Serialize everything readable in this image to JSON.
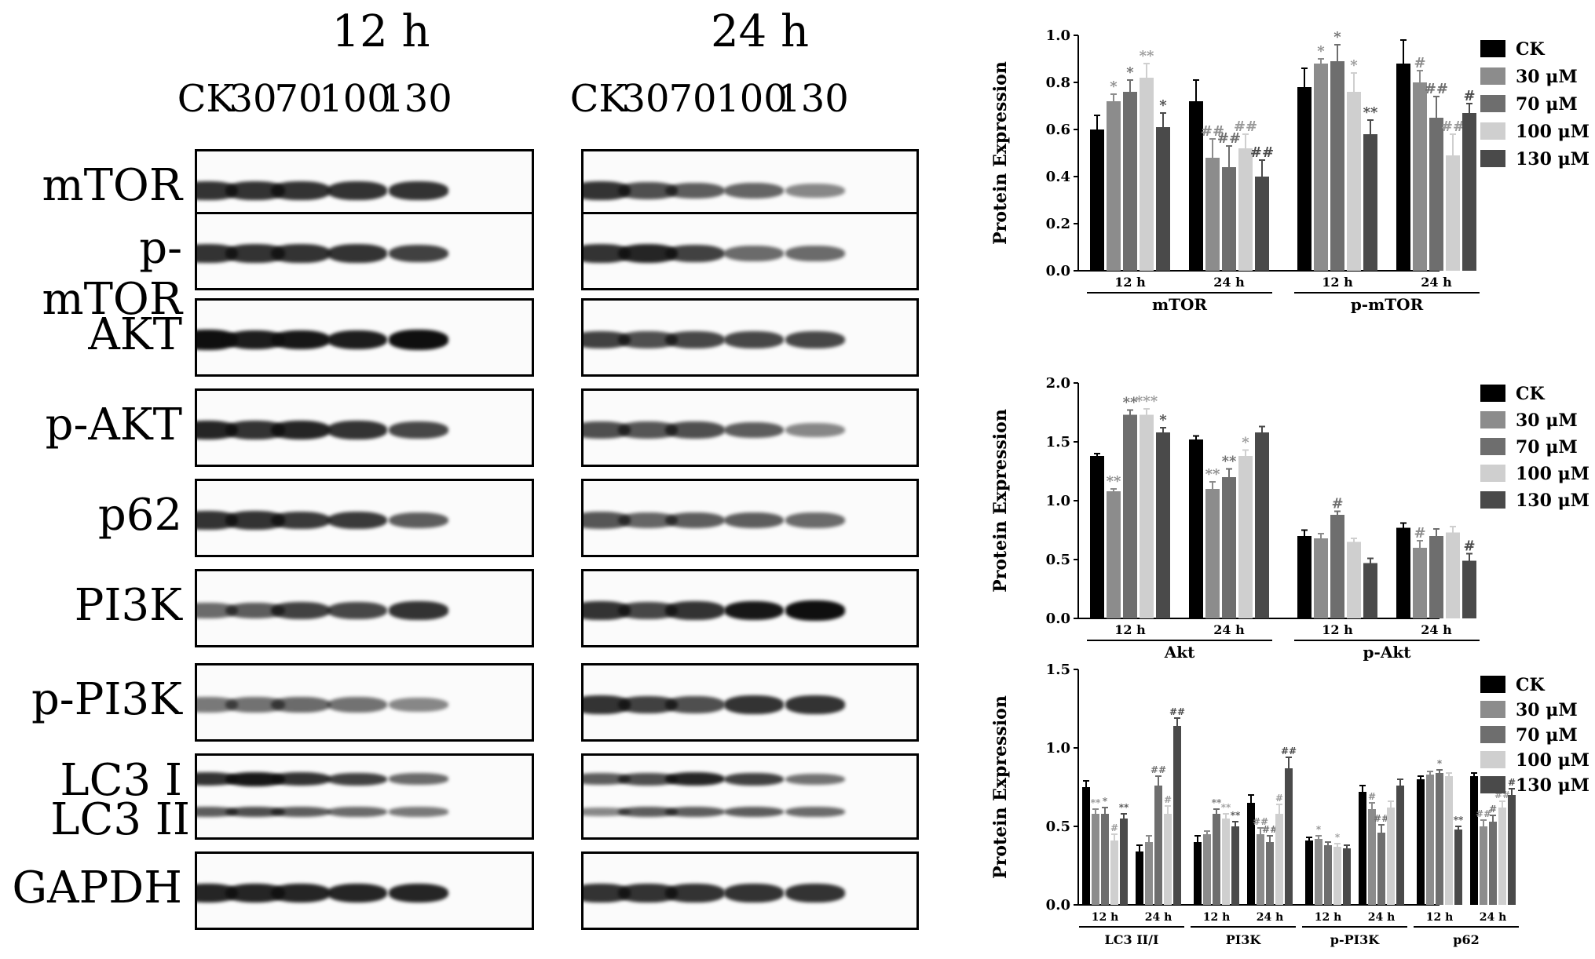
{
  "blots": {
    "time_labels": [
      "12 h",
      "24 h"
    ],
    "lane_labels": [
      "CK",
      "30",
      "70",
      "100",
      "130"
    ],
    "rows": [
      {
        "label": "mTOR",
        "b12": [
          1,
          1,
          1,
          1,
          1
        ],
        "b24": [
          1,
          0.8,
          0.7,
          0.65,
          0.4
        ]
      },
      {
        "label": "p-mTOR",
        "b12": [
          1,
          1,
          1,
          1,
          0.9
        ],
        "b24": [
          1,
          1.1,
          0.9,
          0.6,
          0.6
        ]
      },
      {
        "label": "AKT",
        "b12": [
          1.3,
          1.15,
          1.2,
          1.15,
          1.3
        ],
        "b24": [
          0.9,
          0.8,
          0.85,
          0.85,
          0.85
        ]
      },
      {
        "label": "p-AKT",
        "b12": [
          1.1,
          1,
          1.1,
          1,
          0.85
        ],
        "b24": [
          0.8,
          0.75,
          0.8,
          0.7,
          0.4
        ]
      },
      {
        "label": "p62",
        "b12": [
          1,
          1,
          0.95,
          0.95,
          0.7
        ],
        "b24": [
          0.75,
          0.65,
          0.7,
          0.7,
          0.6
        ]
      },
      {
        "label": "PI3K",
        "b12": [
          0.6,
          0.7,
          0.9,
          0.85,
          1.0
        ],
        "b24": [
          1,
          0.85,
          1,
          1.2,
          1.3
        ]
      },
      {
        "label": "p-PI3K",
        "b12": [
          0.5,
          0.55,
          0.6,
          0.55,
          0.4
        ],
        "b24": [
          1,
          0.9,
          0.8,
          1,
          1
        ]
      },
      {
        "label": "LC3 I",
        "label2": "LC3 II",
        "b12": [
          1,
          1.2,
          1,
          0.9,
          0.6
        ],
        "b12b": [
          0.7,
          0.8,
          0.7,
          0.6,
          0.5
        ],
        "b24": [
          0.7,
          0.8,
          1.1,
          0.9,
          0.55
        ],
        "b24b": [
          0.4,
          0.7,
          0.7,
          0.7,
          0.6
        ]
      },
      {
        "label": "GAPDH",
        "b12": [
          1.1,
          1.1,
          1.1,
          1.1,
          1.1
        ],
        "b24": [
          1,
          1,
          1,
          1,
          1
        ]
      }
    ]
  },
  "chart_data": [
    {
      "type": "bar",
      "ylabel": "Protein Expression",
      "ylim": [
        0,
        1.0
      ],
      "yticks": [
        "0.0",
        "0.2",
        "0.4",
        "0.6",
        "0.8",
        "1.0"
      ],
      "legend": [
        "CK",
        "30 μM",
        "70 μM",
        "100 μM",
        "130 μM"
      ],
      "groups": [
        {
          "label": "mTOR",
          "subgroups": [
            "12 h",
            "24 h"
          ]
        },
        {
          "label": "p-mTOR",
          "subgroups": [
            "12 h",
            "24 h"
          ]
        }
      ],
      "clusters": [
        {
          "values": [
            0.6,
            0.72,
            0.76,
            0.82,
            0.61
          ],
          "errors": [
            0.06,
            0.03,
            0.05,
            0.06,
            0.06
          ],
          "marks": [
            "",
            "*",
            "*",
            "**",
            "*"
          ]
        },
        {
          "values": [
            0.72,
            0.48,
            0.44,
            0.52,
            0.4
          ],
          "errors": [
            0.09,
            0.08,
            0.09,
            0.06,
            0.07
          ],
          "marks": [
            "",
            "##",
            "##",
            "##",
            "##"
          ]
        },
        {
          "values": [
            0.78,
            0.88,
            0.89,
            0.76,
            0.58
          ],
          "errors": [
            0.08,
            0.02,
            0.07,
            0.08,
            0.06
          ],
          "marks": [
            "",
            "*",
            "*",
            "*",
            "**"
          ]
        },
        {
          "values": [
            0.88,
            0.8,
            0.65,
            0.49,
            0.67
          ],
          "errors": [
            0.1,
            0.05,
            0.09,
            0.09,
            0.04
          ],
          "marks": [
            "",
            "#",
            "##",
            "##",
            "#"
          ]
        }
      ]
    },
    {
      "type": "bar",
      "ylabel": "Protein Expression",
      "ylim": [
        0,
        2.0
      ],
      "yticks": [
        "0.0",
        "0.5",
        "1.0",
        "1.5",
        "2.0"
      ],
      "legend": [
        "CK",
        "30 μM",
        "70 μM",
        "100 μM",
        "130 μM"
      ],
      "groups": [
        {
          "label": "Akt",
          "subgroups": [
            "12 h",
            "24 h"
          ]
        },
        {
          "label": "p-Akt",
          "subgroups": [
            "12 h",
            "24 h"
          ]
        }
      ],
      "clusters": [
        {
          "values": [
            1.38,
            1.08,
            1.73,
            1.73,
            1.58
          ],
          "errors": [
            0.02,
            0.02,
            0.04,
            0.05,
            0.04
          ],
          "marks": [
            "",
            "**",
            "**",
            "***",
            "*"
          ]
        },
        {
          "values": [
            1.52,
            1.1,
            1.2,
            1.38,
            1.58
          ],
          "errors": [
            0.03,
            0.06,
            0.07,
            0.05,
            0.05
          ],
          "marks": [
            "",
            "**",
            "**",
            "*",
            ""
          ]
        },
        {
          "values": [
            0.7,
            0.68,
            0.88,
            0.65,
            0.47
          ],
          "errors": [
            0.05,
            0.04,
            0.03,
            0.03,
            0.04
          ],
          "marks": [
            "",
            "",
            "#",
            "",
            ""
          ]
        },
        {
          "values": [
            0.77,
            0.6,
            0.7,
            0.73,
            0.49
          ],
          "errors": [
            0.04,
            0.06,
            0.06,
            0.05,
            0.06
          ],
          "marks": [
            "",
            "#",
            "",
            "",
            "#"
          ]
        }
      ]
    },
    {
      "type": "bar",
      "ylabel": "Protein Expression",
      "ylim": [
        0,
        1.5
      ],
      "yticks": [
        "0.0",
        "0.5",
        "1.0",
        "1.5"
      ],
      "legend": [
        "CK",
        "30 μM",
        "70 μM",
        "100 μM",
        "130 μM"
      ],
      "groups": [
        {
          "label": "LC3 II/I",
          "subgroups": [
            "12 h",
            "24 h"
          ]
        },
        {
          "label": "PI3K",
          "subgroups": [
            "12 h",
            "24 h"
          ]
        },
        {
          "label": "p-PI3K",
          "subgroups": [
            "12 h",
            "24 h"
          ]
        },
        {
          "label": "p62",
          "subgroups": [
            "12 h",
            "24 h"
          ]
        }
      ],
      "clusters": [
        {
          "values": [
            0.75,
            0.58,
            0.58,
            0.41,
            0.55
          ],
          "errors": [
            0.04,
            0.03,
            0.04,
            0.04,
            0.03
          ],
          "marks": [
            "",
            "**",
            "*",
            "#",
            "**"
          ]
        },
        {
          "values": [
            0.34,
            0.4,
            0.76,
            0.58,
            1.14
          ],
          "errors": [
            0.04,
            0.04,
            0.06,
            0.05,
            0.05
          ],
          "marks": [
            "",
            "",
            "##",
            "#",
            "##"
          ]
        },
        {
          "values": [
            0.4,
            0.45,
            0.58,
            0.55,
            0.5
          ],
          "errors": [
            0.04,
            0.02,
            0.03,
            0.03,
            0.03
          ],
          "marks": [
            "",
            "",
            "**",
            "**",
            "**"
          ]
        },
        {
          "values": [
            0.65,
            0.45,
            0.4,
            0.58,
            0.87
          ],
          "errors": [
            0.05,
            0.04,
            0.04,
            0.06,
            0.07
          ],
          "marks": [
            "",
            "##",
            "##",
            "#",
            "##"
          ]
        },
        {
          "values": [
            0.41,
            0.42,
            0.38,
            0.37,
            0.36
          ],
          "errors": [
            0.02,
            0.02,
            0.02,
            0.02,
            0.02
          ],
          "marks": [
            "",
            "*",
            "",
            "*",
            ""
          ]
        },
        {
          "values": [
            0.72,
            0.61,
            0.46,
            0.62,
            0.76
          ],
          "errors": [
            0.04,
            0.04,
            0.05,
            0.04,
            0.04
          ],
          "marks": [
            "",
            "#",
            "##",
            "",
            ""
          ]
        },
        {
          "values": [
            0.8,
            0.83,
            0.84,
            0.82,
            0.48
          ],
          "errors": [
            0.02,
            0.02,
            0.02,
            0.02,
            0.02
          ],
          "marks": [
            "",
            "",
            "*",
            "",
            "**"
          ]
        },
        {
          "values": [
            0.82,
            0.5,
            0.53,
            0.62,
            0.7
          ],
          "errors": [
            0.02,
            0.04,
            0.04,
            0.04,
            0.04
          ],
          "marks": [
            "",
            "##",
            "#",
            "##",
            "#"
          ]
        }
      ]
    }
  ],
  "colors": {
    "series": [
      "#000000",
      "#8c8c8c",
      "#6e6e6e",
      "#cfcfcf",
      "#4a4a4a"
    ]
  }
}
